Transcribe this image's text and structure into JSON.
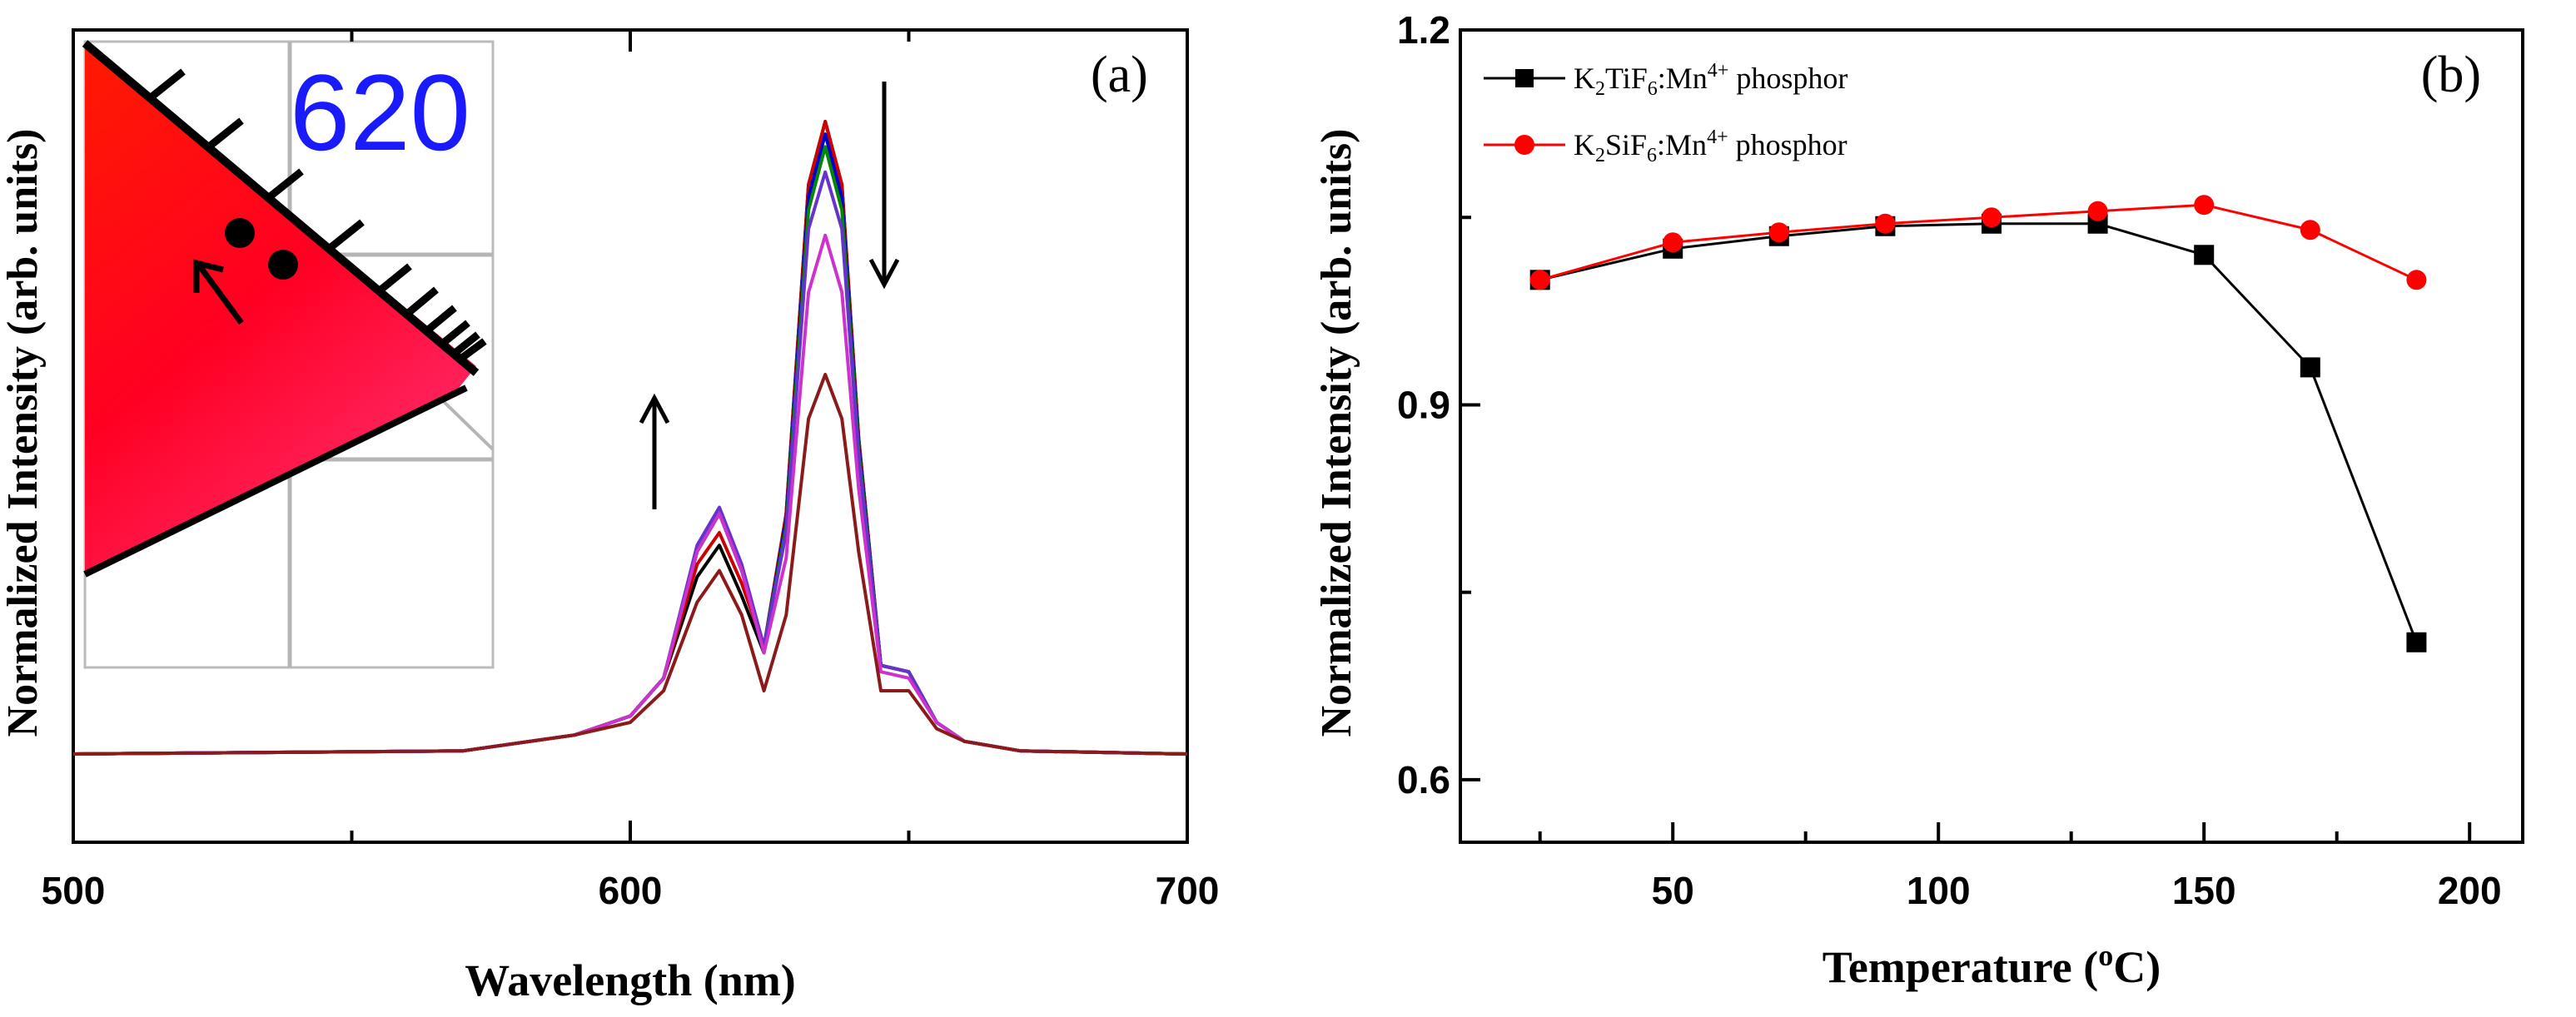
{
  "chart_data": [
    {
      "type": "line",
      "panel_tag": "(a)",
      "xlabel": "Wavelength (nm)",
      "ylabel": "Normalized Intensity (arb. units)",
      "xlim": [
        500,
        700
      ],
      "x_ticks": [
        500,
        600,
        700
      ],
      "y_ticks_labeled": false,
      "legend": "none",
      "annotations": [
        "arrow up near 615 nm peak",
        "arrow down near 633 nm peak"
      ],
      "series": [
        {
          "color": "#000000",
          "x": [
            500,
            570,
            590,
            600,
            606,
            612,
            616,
            620,
            624,
            628,
            632,
            635,
            638,
            641,
            645,
            650,
            655,
            660,
            670,
            700
          ],
          "values": [
            0,
            0.005,
            0.03,
            0.06,
            0.12,
            0.28,
            0.33,
            0.25,
            0.16,
            0.38,
            0.9,
            1.0,
            0.9,
            0.5,
            0.14,
            0.13,
            0.05,
            0.02,
            0.005,
            0
          ]
        },
        {
          "color": "#cc0000",
          "x": [
            500,
            570,
            590,
            600,
            606,
            612,
            616,
            620,
            624,
            628,
            632,
            635,
            638,
            641,
            645,
            650,
            655,
            660,
            670,
            700
          ],
          "values": [
            0,
            0.005,
            0.03,
            0.06,
            0.12,
            0.3,
            0.35,
            0.27,
            0.17,
            0.38,
            0.9,
            1.0,
            0.9,
            0.5,
            0.14,
            0.13,
            0.05,
            0.02,
            0.005,
            0
          ]
        },
        {
          "color": "#0000cc",
          "x": [
            500,
            570,
            590,
            600,
            606,
            612,
            616,
            620,
            624,
            628,
            632,
            635,
            638,
            641,
            645,
            650,
            655,
            660,
            670,
            700
          ],
          "values": [
            0,
            0.005,
            0.03,
            0.06,
            0.12,
            0.32,
            0.38,
            0.29,
            0.17,
            0.37,
            0.88,
            0.98,
            0.88,
            0.49,
            0.14,
            0.13,
            0.05,
            0.02,
            0.005,
            0
          ]
        },
        {
          "color": "#008800",
          "x": [
            500,
            570,
            590,
            600,
            606,
            612,
            616,
            620,
            624,
            628,
            632,
            635,
            638,
            641,
            645,
            650,
            655,
            660,
            670,
            700
          ],
          "values": [
            0,
            0.005,
            0.03,
            0.06,
            0.12,
            0.32,
            0.38,
            0.29,
            0.17,
            0.36,
            0.86,
            0.96,
            0.86,
            0.48,
            0.14,
            0.13,
            0.05,
            0.02,
            0.005,
            0
          ]
        },
        {
          "color": "#6633cc",
          "x": [
            500,
            570,
            590,
            600,
            606,
            612,
            616,
            620,
            624,
            628,
            632,
            635,
            638,
            641,
            645,
            650,
            655,
            660,
            670,
            700
          ],
          "values": [
            0,
            0.005,
            0.03,
            0.06,
            0.12,
            0.33,
            0.39,
            0.3,
            0.17,
            0.35,
            0.83,
            0.92,
            0.83,
            0.47,
            0.14,
            0.13,
            0.05,
            0.02,
            0.005,
            0
          ]
        },
        {
          "color": "#cc33cc",
          "x": [
            500,
            570,
            590,
            600,
            606,
            612,
            616,
            620,
            624,
            628,
            632,
            635,
            638,
            641,
            645,
            650,
            655,
            660,
            670,
            700
          ],
          "values": [
            0,
            0.005,
            0.03,
            0.06,
            0.12,
            0.32,
            0.38,
            0.29,
            0.16,
            0.31,
            0.73,
            0.82,
            0.73,
            0.42,
            0.13,
            0.12,
            0.05,
            0.02,
            0.005,
            0
          ]
        },
        {
          "color": "#8b1a1a",
          "x": [
            500,
            570,
            590,
            600,
            606,
            612,
            616,
            620,
            624,
            628,
            632,
            635,
            638,
            641,
            645,
            650,
            655,
            660,
            670,
            700
          ],
          "values": [
            0,
            0.005,
            0.03,
            0.05,
            0.1,
            0.24,
            0.29,
            0.22,
            0.1,
            0.22,
            0.53,
            0.6,
            0.53,
            0.32,
            0.1,
            0.1,
            0.04,
            0.02,
            0.005,
            0
          ]
        }
      ],
      "inset": {
        "label": "620",
        "description": "CIE diagram detail with two points and an arrow"
      }
    },
    {
      "type": "line",
      "panel_tag": "(b)",
      "xlabel": "Temperature (°C)",
      "ylabel": "Normalized Intensity (arb. units)",
      "xlim": [
        10,
        210
      ],
      "ylim": [
        0.55,
        1.2
      ],
      "x_ticks": [
        50,
        100,
        150,
        200
      ],
      "y_ticks": [
        0.6,
        0.9,
        1.2
      ],
      "legend": "top-left",
      "series": [
        {
          "name_formula": "K2TiF6:Mn4+",
          "name_suffix": "phosphor",
          "color": "#000000",
          "marker": "square",
          "x": [
            25,
            50,
            70,
            90,
            110,
            130,
            150,
            170,
            190
          ],
          "values": [
            1.0,
            1.025,
            1.035,
            1.043,
            1.045,
            1.045,
            1.02,
            0.93,
            0.71
          ]
        },
        {
          "name_formula": "K2SiF6:Mn4+",
          "name_suffix": "phosphor",
          "color": "#ff0000",
          "marker": "circle",
          "x": [
            25,
            50,
            70,
            90,
            110,
            130,
            150,
            170,
            190
          ],
          "values": [
            1.0,
            1.03,
            1.038,
            1.045,
            1.05,
            1.055,
            1.06,
            1.04,
            1.0
          ]
        }
      ]
    }
  ]
}
